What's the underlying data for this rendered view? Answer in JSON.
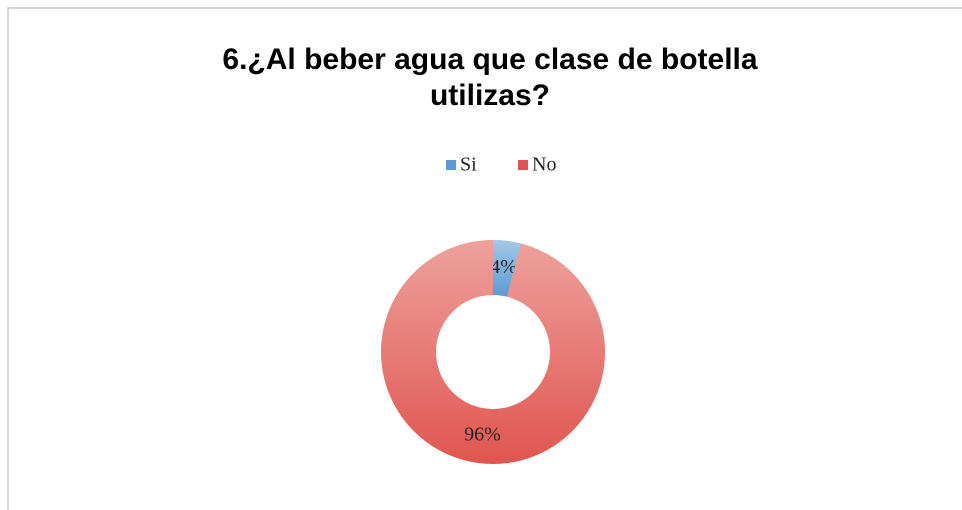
{
  "chart_data": {
    "type": "donut",
    "title": "6.¿Al beber agua que clase de botella utilizas?",
    "categories": [
      "Si",
      "No"
    ],
    "values": [
      4,
      96
    ],
    "value_labels": [
      "4%",
      "96%"
    ],
    "colors": [
      "#5b9bd5",
      "#e0554f"
    ],
    "legend": "top"
  }
}
